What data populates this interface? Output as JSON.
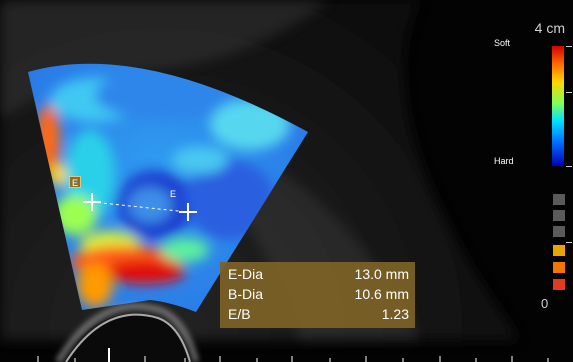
{
  "scale": {
    "depth_max": "4 cm",
    "depth_min": "0"
  },
  "elasto_scale": {
    "top_label": "Soft",
    "bottom_label": "Hard"
  },
  "roi_marker": {
    "label": "E"
  },
  "caliper_label": "E",
  "measurements": [
    {
      "label": "E-Dia",
      "value": "13.0 mm"
    },
    {
      "label": "B-Dia",
      "value": "10.6 mm"
    },
    {
      "label": "E/B",
      "value": "1.23"
    }
  ],
  "level_indicator": {
    "colors": [
      "#5a5a5a",
      "#5a5a5a",
      "#5a5a5a",
      "#e8a400",
      "#f07800",
      "#e23c1e"
    ]
  }
}
